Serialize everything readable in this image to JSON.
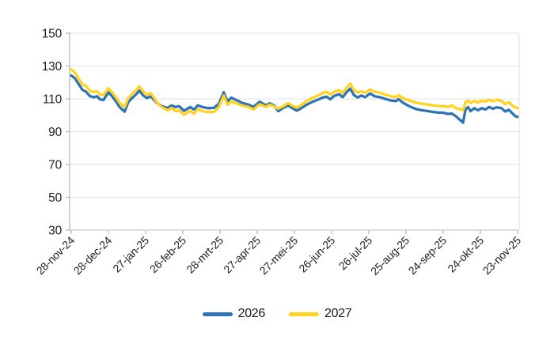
{
  "chart": {
    "background": "#FFFFFF",
    "axis_color": "#BDBDBD",
    "grid_color": "#E2E2E2",
    "label_color": "#1F1F1F"
  },
  "chart_data": {
    "type": "line",
    "title": "",
    "xlabel": "",
    "ylabel": "",
    "grid": "horizontal",
    "legend_position": "bottom-center",
    "y_axis": {
      "ticks": [
        30,
        50,
        70,
        90,
        110,
        130,
        150
      ],
      "lim": [
        30,
        150
      ]
    },
    "x_axis": {
      "tick_labels": [
        "28-nov-24",
        "28-dec-24",
        "27-jan-25",
        "26-feb-25",
        "28-mrt-25",
        "27-apr-25",
        "27-mei-25",
        "26-jun-25",
        "26-jul-25",
        "25-aug-25",
        "24-sep-25",
        "24-okt-25",
        "23-nov-25"
      ],
      "tick_days": [
        0,
        30,
        60,
        90,
        120,
        150,
        180,
        210,
        240,
        270,
        300,
        330,
        360
      ],
      "lim_days": [
        0,
        360
      ]
    },
    "x_days": [
      0,
      3,
      6,
      9,
      12,
      15,
      18,
      21,
      23,
      26,
      30,
      33,
      36,
      39,
      43,
      46,
      49,
      52,
      55,
      58,
      61,
      64,
      66,
      69,
      72,
      75,
      78,
      81,
      84,
      87,
      91,
      96,
      99,
      102,
      106,
      110,
      115,
      119,
      123,
      126,
      129,
      134,
      138,
      143,
      147,
      152,
      157,
      160,
      164,
      167,
      171,
      175,
      179,
      182,
      186,
      190,
      194,
      199,
      203,
      206,
      209,
      212,
      216,
      219,
      222,
      225,
      228,
      231,
      234,
      237,
      241,
      245,
      249,
      253,
      258,
      262,
      264,
      267,
      270,
      274,
      279,
      283,
      287,
      292,
      296,
      300,
      304,
      307,
      310,
      313,
      316,
      318,
      320,
      322,
      325,
      328,
      331,
      334,
      337,
      340,
      343,
      347,
      350,
      353,
      356,
      358,
      360
    ],
    "series": [
      {
        "name": "2026",
        "color": "#2E74B5",
        "values": [
          124.2,
          122.5,
          119,
          115.5,
          114.3,
          111.7,
          111,
          111.5,
          109.8,
          109.3,
          114,
          111.5,
          108.5,
          105,
          102.2,
          108,
          110.5,
          112.5,
          115,
          112,
          110.5,
          111.5,
          110,
          107.5,
          106,
          105,
          104.5,
          106,
          105,
          105.5,
          102.7,
          105,
          103.5,
          106,
          105,
          104.3,
          104.5,
          106.8,
          114,
          108.4,
          110.7,
          109,
          107.5,
          106.5,
          105.1,
          108.2,
          106,
          107.3,
          105.8,
          102.5,
          104.5,
          105.9,
          104,
          102.8,
          104.5,
          106.5,
          108,
          109.5,
          110.8,
          111.3,
          109.7,
          111.8,
          112.8,
          111,
          114,
          116.2,
          112.3,
          110.8,
          112,
          111,
          113.3,
          111.5,
          111,
          110,
          109,
          108.6,
          109.8,
          108,
          106.6,
          105,
          103.6,
          103,
          102.6,
          102,
          101.6,
          101.5,
          100.8,
          101,
          99.5,
          97.5,
          95.5,
          103.5,
          105,
          102.5,
          104.3,
          103,
          104.3,
          103.5,
          105,
          104,
          104.8,
          104.3,
          102.3,
          103.3,
          101,
          99.5,
          99
        ]
      },
      {
        "name": "2027",
        "color": "#FFD320",
        "values": [
          128,
          126,
          122.3,
          118.8,
          117.8,
          114.9,
          114.3,
          114.6,
          112.8,
          112.3,
          116.5,
          114,
          111,
          107.5,
          105,
          110.5,
          113,
          115,
          117.5,
          114.5,
          112.5,
          113.5,
          111.5,
          108,
          105.5,
          104,
          103,
          104.5,
          102.5,
          103,
          100.3,
          102.7,
          100.8,
          103.7,
          102.5,
          102,
          102,
          104.8,
          112,
          106.4,
          108.4,
          107,
          105.8,
          105,
          103.5,
          106.7,
          105,
          106.5,
          105.3,
          104,
          105.5,
          107.4,
          105.5,
          104.6,
          106.5,
          108.8,
          110.3,
          112,
          113.5,
          114.3,
          112.5,
          114.3,
          115.3,
          113.5,
          116.8,
          119.3,
          115.3,
          113.8,
          114.6,
          113.6,
          115.8,
          114.3,
          113.8,
          112.6,
          111.6,
          111,
          112.3,
          110.6,
          109.6,
          108.6,
          107.6,
          107,
          106.6,
          106,
          105.6,
          105.5,
          105,
          106,
          104.5,
          103.8,
          103,
          108,
          108.8,
          107.3,
          108.8,
          107.8,
          108.8,
          108.3,
          109.5,
          108.5,
          109.3,
          108.8,
          106.8,
          108,
          105.8,
          104.8,
          104.3
        ]
      }
    ]
  },
  "legend": {
    "items": [
      {
        "label": "2026",
        "color": "#2E74B5"
      },
      {
        "label": "2027",
        "color": "#FFD320"
      }
    ]
  }
}
